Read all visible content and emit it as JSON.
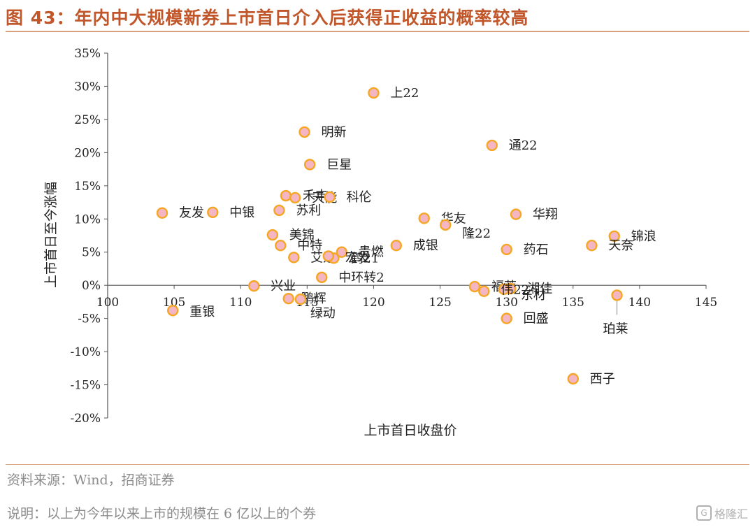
{
  "figure": {
    "title": "图 43：年内中大规模新券上市首日介入后获得正收益的概率较高",
    "source": "资料来源：Wind，招商证券",
    "note": "说明：以上为今年以来上市的规模在 6 亿以上的个券",
    "watermark": "格隆汇",
    "watermark_icon": "G"
  },
  "colors": {
    "title": "#c0562a",
    "rule": "#d9a07d",
    "marker_fill": "#f4b6c2",
    "marker_stroke": "#f5a623",
    "axis": "#555555",
    "label": "#222222",
    "footnote": "#8c8c8c"
  },
  "chart_data": {
    "type": "scatter",
    "title": "",
    "xlabel": "上市首日收盘价",
    "ylabel": "上市首日至今涨幅",
    "xlim": [
      100,
      145
    ],
    "ylim": [
      -20,
      35
    ],
    "x_ticks": [
      "100",
      "105",
      "110",
      "115",
      "120",
      "125",
      "130",
      "135",
      "140",
      "145"
    ],
    "y_ticks": [
      "35%",
      "30%",
      "25%",
      "20%",
      "15%",
      "10%",
      "5%",
      "0%",
      "-5%",
      "-10%",
      "-15%",
      "-20%"
    ],
    "grid": false,
    "points": [
      {
        "name": "上22",
        "x": 120.0,
        "y": 29.0
      },
      {
        "name": "明新",
        "x": 114.8,
        "y": 23.1
      },
      {
        "name": "通22",
        "x": 128.9,
        "y": 21.1
      },
      {
        "name": "巨星",
        "x": 115.2,
        "y": 18.2
      },
      {
        "name": "禾丰",
        "x": 113.4,
        "y": 13.5
      },
      {
        "name": "天能",
        "x": 114.1,
        "y": 13.2
      },
      {
        "name": "科伦",
        "x": 116.7,
        "y": 13.3
      },
      {
        "name": "友发",
        "x": 104.1,
        "y": 10.9
      },
      {
        "name": "中银",
        "x": 107.9,
        "y": 11.0
      },
      {
        "name": "苏利",
        "x": 112.9,
        "y": 11.3
      },
      {
        "name": "华友",
        "x": 123.8,
        "y": 10.1
      },
      {
        "name": "华翔",
        "x": 130.7,
        "y": 10.7
      },
      {
        "name": "隆22",
        "x": 125.4,
        "y": 9.1
      },
      {
        "name": "美锦",
        "x": 112.4,
        "y": 7.6
      },
      {
        "name": "锦浪",
        "x": 138.1,
        "y": 7.4
      },
      {
        "name": "中特",
        "x": 113.0,
        "y": 6.0
      },
      {
        "name": "成银",
        "x": 121.7,
        "y": 6.0
      },
      {
        "name": "天奈",
        "x": 136.4,
        "y": 6.0
      },
      {
        "name": "药石",
        "x": 130.0,
        "y": 5.4
      },
      {
        "name": "贵燃",
        "x": 117.6,
        "y": 5.0
      },
      {
        "name": "艾迪",
        "x": 114.0,
        "y": 4.2
      },
      {
        "name": "鹤21",
        "x": 117.0,
        "y": 4.1
      },
      {
        "name": "宏发",
        "x": 116.6,
        "y": 4.4
      },
      {
        "name": "中环转2",
        "x": 116.1,
        "y": 1.2
      },
      {
        "name": "兴业",
        "x": 111.0,
        "y": -0.1
      },
      {
        "name": "福莱",
        "x": 127.6,
        "y": -0.2
      },
      {
        "name": "湘佳",
        "x": 130.3,
        "y": -0.5
      },
      {
        "name": "东材",
        "x": 129.8,
        "y": -0.6
      },
      {
        "name": "伟22",
        "x": 128.3,
        "y": -0.9
      },
      {
        "name": "珀莱",
        "x": 138.3,
        "y": -1.5
      },
      {
        "name": "鹏辉",
        "x": 113.6,
        "y": -2.0
      },
      {
        "name": "绿动",
        "x": 114.5,
        "y": -2.1
      },
      {
        "name": "重银",
        "x": 104.9,
        "y": -3.8
      },
      {
        "name": "回盛",
        "x": 130.0,
        "y": -5.0
      },
      {
        "name": "西子",
        "x": 135.0,
        "y": -14.1
      }
    ]
  }
}
